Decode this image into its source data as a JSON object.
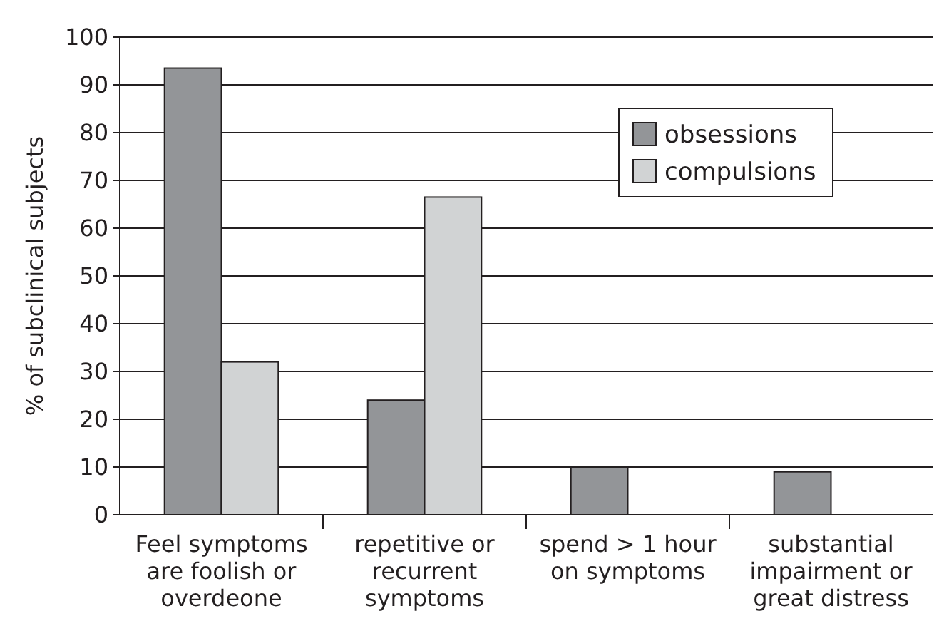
{
  "chart_data": {
    "type": "bar",
    "ylabel": "% of subclinical subjects",
    "categories": [
      "Feel symptoms are foolish or overdeone",
      "repetitive or recurrent symptoms",
      "spend > 1 hour on symptoms",
      "substantial impairment or great distress"
    ],
    "series": [
      {
        "name": "obsessions",
        "color": "#939598",
        "values": [
          93.5,
          24,
          10,
          9
        ]
      },
      {
        "name": "compulsions",
        "color": "#d1d3d4",
        "values": [
          32,
          66.5,
          null,
          null
        ]
      }
    ],
    "ylim": [
      0,
      100
    ],
    "yticks": [
      0,
      10,
      20,
      30,
      40,
      50,
      60,
      70,
      80,
      90,
      100
    ],
    "grid": "y",
    "legend": "top right"
  }
}
